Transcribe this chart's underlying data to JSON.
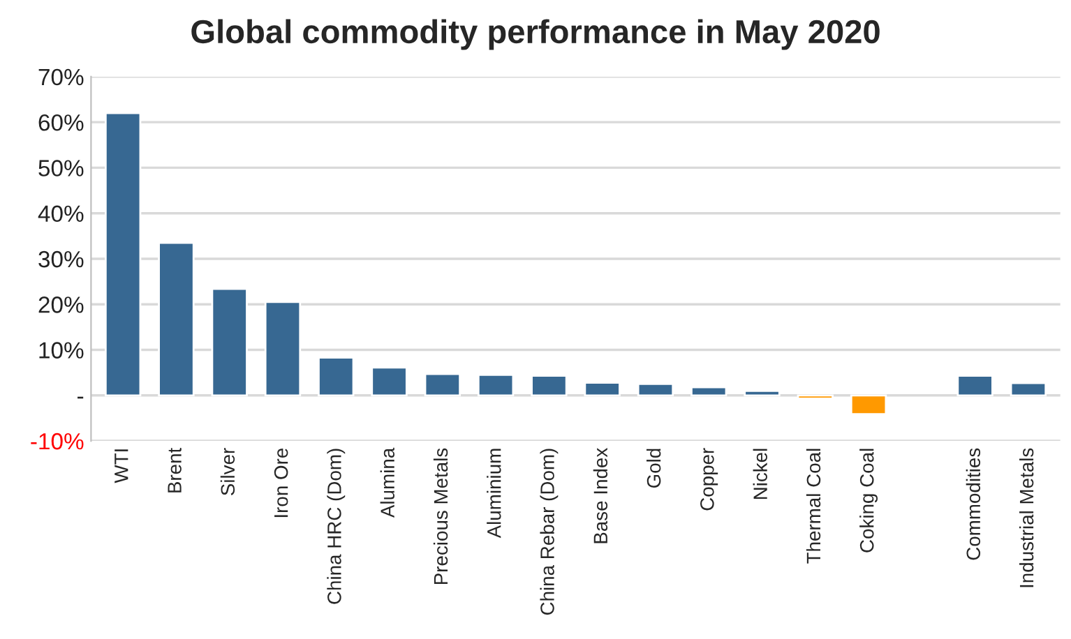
{
  "chart_data": {
    "type": "bar",
    "title": "Global commodity performance in May 2020",
    "categories": [
      "WTI",
      "Brent",
      "Silver",
      "Iron Ore",
      "China HRC (Dom)",
      "Alumina",
      "Precious Metals",
      "Aluminium",
      "China Rebar (Dom)",
      "Base Index",
      "Gold",
      "Copper",
      "Nickel",
      "Thermal Coal",
      "Coking Coal",
      null,
      "Commodities",
      "Industrial Metals"
    ],
    "values": [
      62.0,
      33.5,
      23.4,
      20.5,
      8.3,
      6.1,
      4.7,
      4.5,
      4.3,
      2.8,
      2.5,
      1.8,
      1.0,
      -0.7,
      -4.1,
      null,
      4.3,
      2.7
    ],
    "colors": [
      "#376892",
      "#376892",
      "#376892",
      "#376892",
      "#376892",
      "#376892",
      "#376892",
      "#376892",
      "#376892",
      "#376892",
      "#376892",
      "#376892",
      "#376892",
      "#ff9900",
      "#ff9900",
      "#376892",
      "#376892",
      "#376892"
    ],
    "ylim": [
      -10,
      70
    ],
    "yticks": [
      {
        "value": -10,
        "label": "-10%"
      },
      {
        "value": 0,
        "label": "-"
      },
      {
        "value": 10,
        "label": "10%"
      },
      {
        "value": 20,
        "label": "20%"
      },
      {
        "value": 30,
        "label": "30%"
      },
      {
        "value": 40,
        "label": "40%"
      },
      {
        "value": 50,
        "label": "50%"
      },
      {
        "value": 60,
        "label": "60%"
      },
      {
        "value": 70,
        "label": "70%"
      }
    ],
    "grid": "y"
  }
}
